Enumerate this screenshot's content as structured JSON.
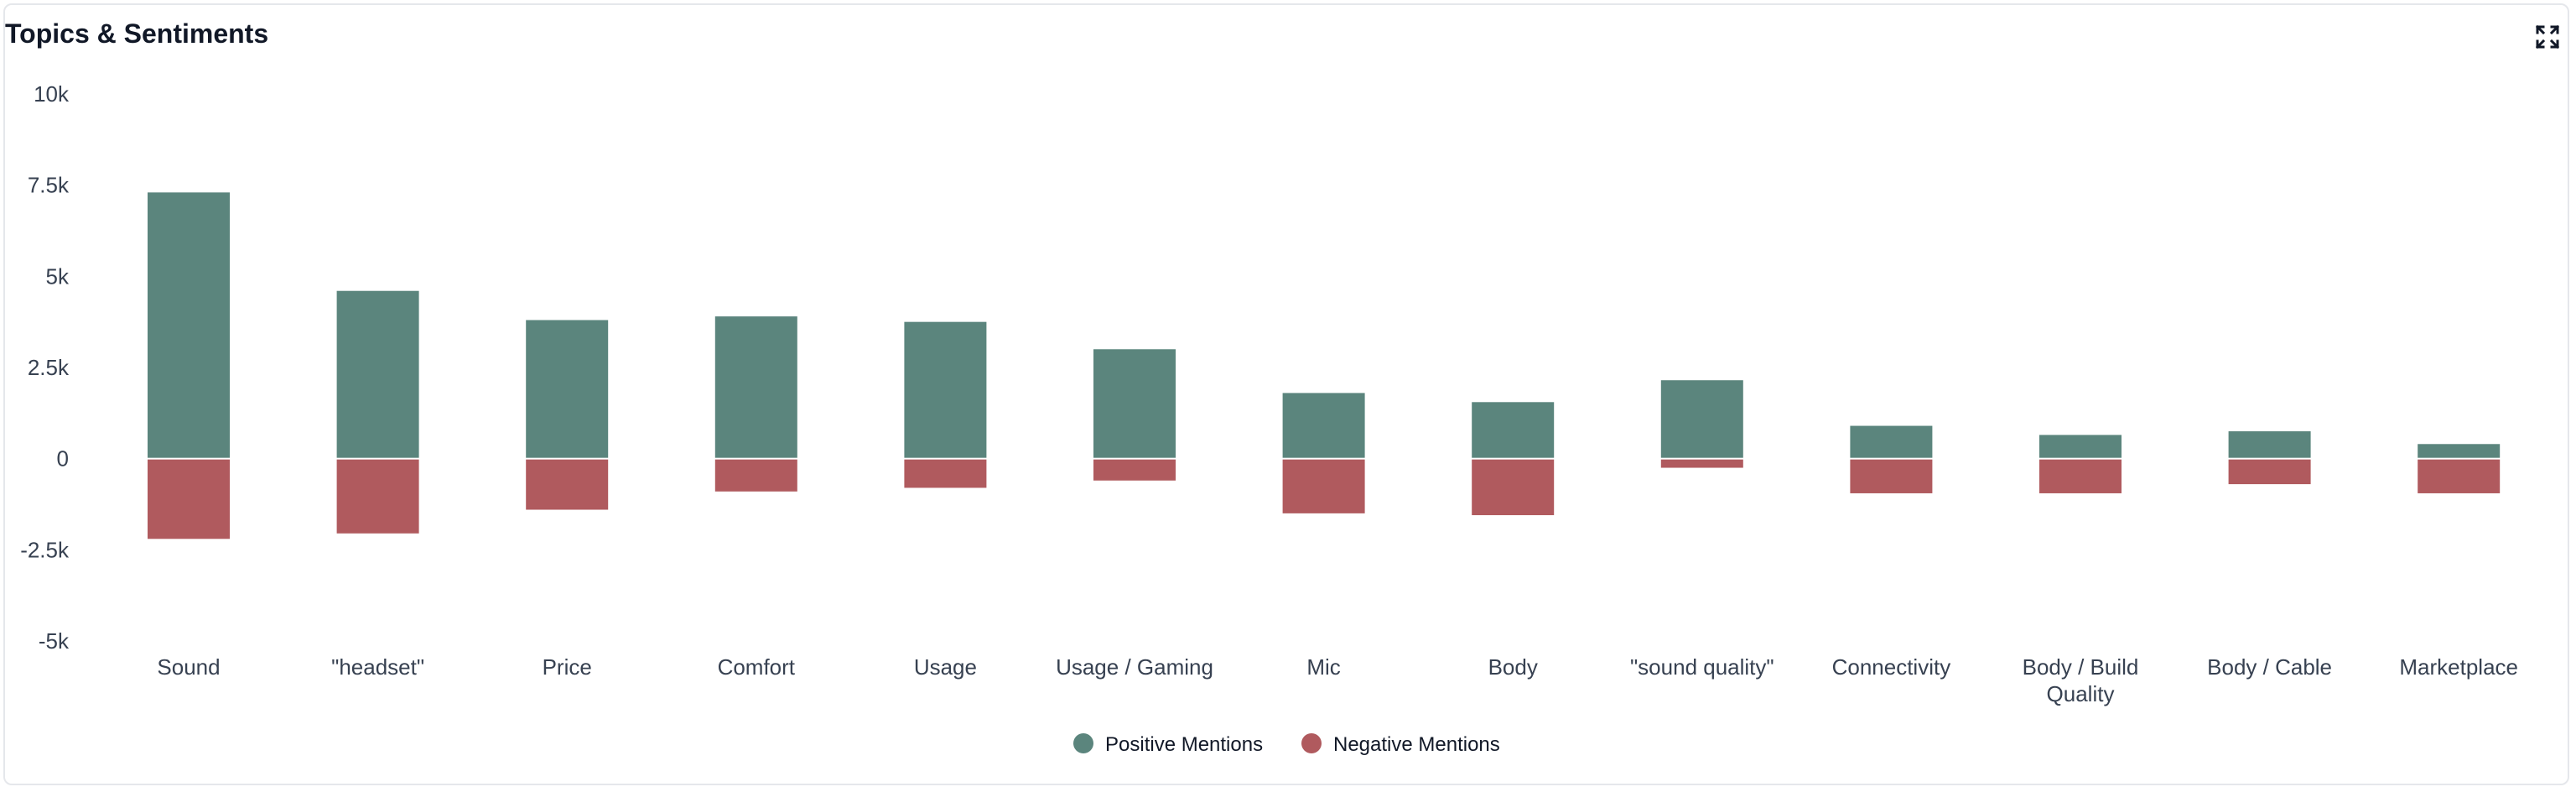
{
  "title": "Topics & Sentiments",
  "icons": {
    "expand": "expand-icon"
  },
  "colors": {
    "positive": "#5b857d",
    "negative": "#b05a5e"
  },
  "chart_data": {
    "type": "bar",
    "stacked": true,
    "title": "Topics & Sentiments",
    "xlabel": "",
    "ylabel": "",
    "ylim": [
      -5000,
      10000
    ],
    "y_ticks": [
      10000,
      7500,
      5000,
      2500,
      0,
      -2500,
      -5000
    ],
    "y_tick_labels": [
      "10k",
      "7.5k",
      "5k",
      "2.5k",
      "0",
      "-2.5k",
      "-5k"
    ],
    "categories": [
      "Sound",
      "\"headset\"",
      "Price",
      "Comfort",
      "Usage",
      "Usage / Gaming",
      "Mic",
      "Body",
      "\"sound quality\"",
      "Connectivity",
      "Body / Build Quality",
      "Body / Cable",
      "Marketplace"
    ],
    "category_lines": [
      [
        "Sound"
      ],
      [
        "\"headset\""
      ],
      [
        "Price"
      ],
      [
        "Comfort"
      ],
      [
        "Usage"
      ],
      [
        "Usage / Gaming"
      ],
      [
        "Mic"
      ],
      [
        "Body"
      ],
      [
        "\"sound quality\""
      ],
      [
        "Connectivity"
      ],
      [
        "Body / Build",
        "Quality"
      ],
      [
        "Body / Cable"
      ],
      [
        "Marketplace"
      ]
    ],
    "series": [
      {
        "name": "Positive Mentions",
        "color": "#5b857d",
        "values": [
          7300,
          4600,
          3800,
          3900,
          3750,
          3000,
          1800,
          1550,
          2150,
          900,
          650,
          750,
          400
        ]
      },
      {
        "name": "Negative Mentions",
        "color": "#b05a5e",
        "values": [
          -2200,
          -2050,
          -1400,
          -900,
          -800,
          -600,
          -1500,
          -1550,
          -250,
          -950,
          -950,
          -700,
          -950
        ]
      }
    ],
    "legend": "bottom-center",
    "grid": false
  }
}
